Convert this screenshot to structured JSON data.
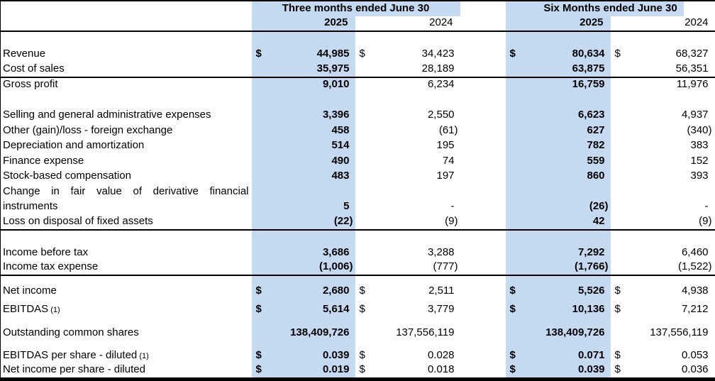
{
  "colors": {
    "highlight_blue": "#C5D9F1",
    "border_black": "#000000",
    "text": "#000000",
    "background": "#FFFFFF"
  },
  "table": {
    "currency_symbol": "$",
    "groups": [
      {
        "label": "Three months ended June 30",
        "years": [
          "2025",
          "2024"
        ]
      },
      {
        "label": "Six Months ended June 30",
        "years": [
          "2025",
          "2024"
        ]
      }
    ],
    "columns": [
      "Three months 2025",
      "Three months 2024",
      "Six months 2025",
      "Six months 2024"
    ],
    "rows": [
      {
        "spacer": true
      },
      {
        "label": "Revenue",
        "dollar": true,
        "values": [
          "44,985",
          "34,423",
          "80,634",
          "68,327"
        ]
      },
      {
        "label": "Cost of sales",
        "values": [
          "35,975",
          "28,189",
          "63,875",
          "56,351"
        ],
        "rule_below": true
      },
      {
        "label": "Gross profit",
        "values": [
          "9,010",
          "6,234",
          "16,759",
          "11,976"
        ]
      },
      {
        "spacer": true
      },
      {
        "label": "Selling and general administrative expenses",
        "values": [
          "3,396",
          "2,550",
          "6,623",
          "4,937"
        ]
      },
      {
        "label": "Other (gain)/loss - foreign exchange",
        "values": [
          "458",
          "(61)",
          "627",
          "(340)"
        ]
      },
      {
        "label": "Depreciation and amortization",
        "values": [
          "514",
          "195",
          "782",
          "383"
        ]
      },
      {
        "label": "Finance expense",
        "values": [
          "490",
          "74",
          "559",
          "152"
        ]
      },
      {
        "label": "Stock-based compensation",
        "values": [
          "483",
          "197",
          "860",
          "393"
        ]
      },
      {
        "label": "Change in fair value of derivative financial",
        "justify": true,
        "values": [
          "",
          "",
          "",
          ""
        ]
      },
      {
        "label": "instruments",
        "values": [
          "5",
          "-",
          "(26)",
          "-"
        ]
      },
      {
        "label": "Loss on disposal of fixed assets",
        "values": [
          "(22)",
          "(9)",
          "42",
          "(9)"
        ],
        "rule_below": true
      },
      {
        "spacer": true
      },
      {
        "label": "Income before tax",
        "values": [
          "3,686",
          "3,288",
          "7,292",
          "6,460"
        ]
      },
      {
        "label": "Income tax expense",
        "values": [
          "(1,006)",
          "(777)",
          "(1,766)",
          "(1,522)"
        ],
        "rule_below": true
      },
      {
        "label": "Net income",
        "dollar": true,
        "values": [
          "2,680",
          "2,511",
          "5,526",
          "4,938"
        ]
      },
      {
        "label": "EBITDAS",
        "label_note": "(1)",
        "dollar": true,
        "values": [
          "5,614",
          "3,779",
          "10,136",
          "7,212"
        ]
      },
      {
        "label": "Outstanding common shares",
        "values": [
          "138,409,726",
          "137,556,119",
          "138,409,726",
          "137,556,119"
        ]
      },
      {
        "label": "EBITDAS per share - diluted",
        "label_note": "(1)",
        "dollar": true,
        "values": [
          "0.039",
          "0.028",
          "0.071",
          "0.053"
        ]
      },
      {
        "label": "Net income per share - diluted",
        "dollar": true,
        "values": [
          "0.019",
          "0.018",
          "0.039",
          "0.036"
        ]
      }
    ]
  }
}
